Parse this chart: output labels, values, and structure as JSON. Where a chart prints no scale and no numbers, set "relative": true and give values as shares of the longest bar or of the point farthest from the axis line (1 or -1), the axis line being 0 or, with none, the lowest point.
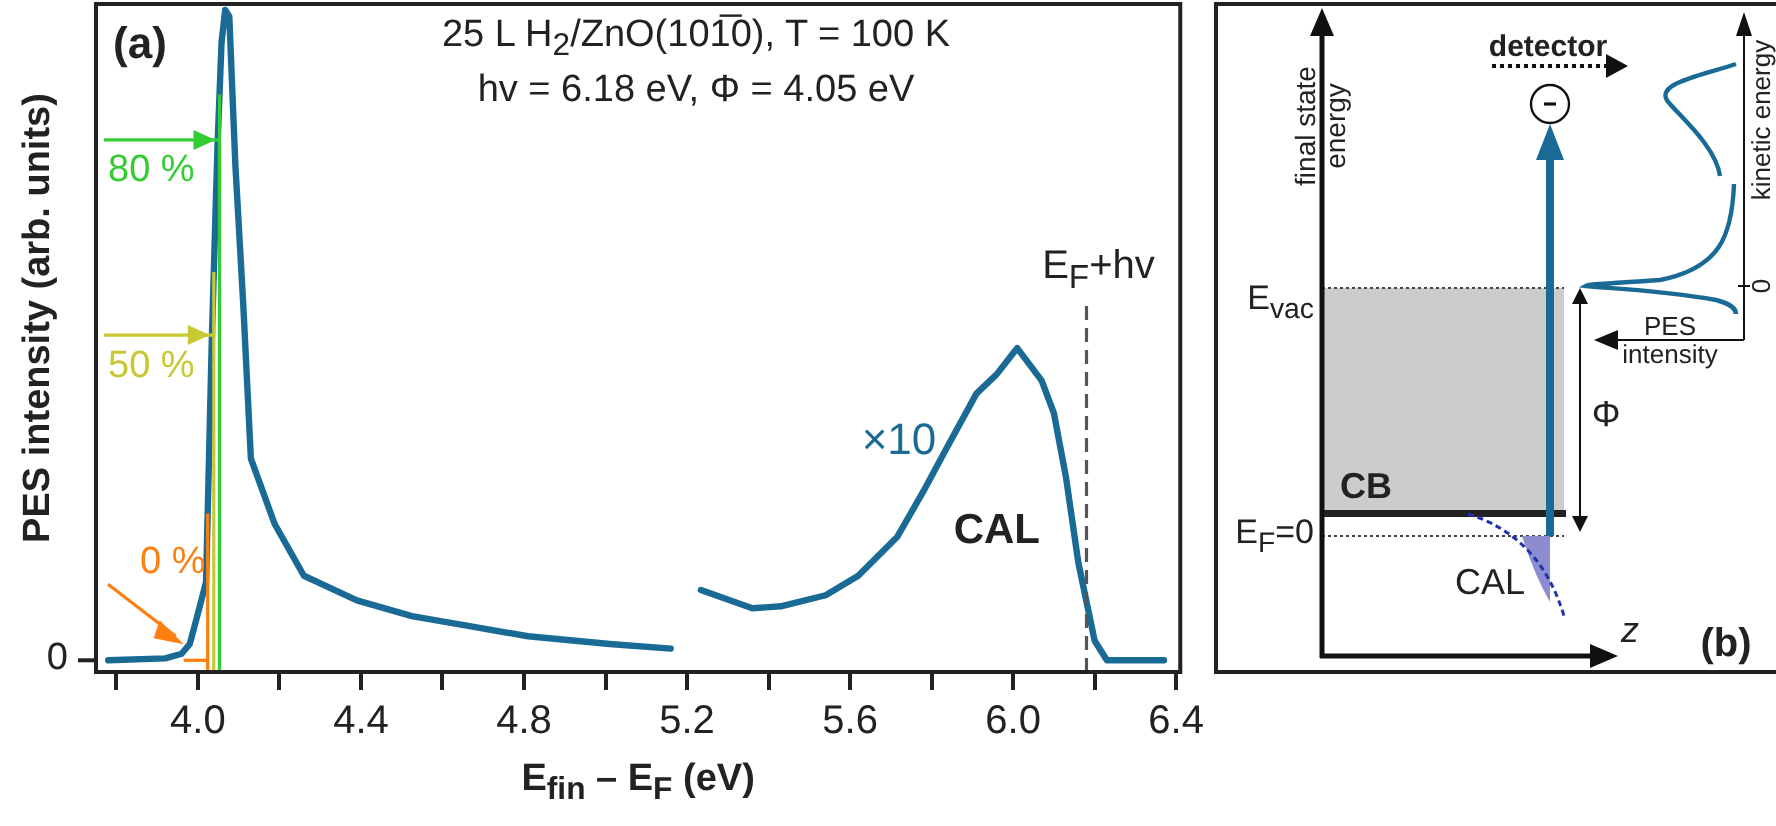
{
  "chart_data": [
    {
      "type": "line",
      "xlabel": "E$_{fin}$ – E$_{F}$ (eV)",
      "ylabel": "PES intensity (arb. units)",
      "relative": true,
      "xlim": [
        3.75,
        6.41
      ],
      "xticks": [
        {
          "value": 3.8,
          "label": null
        },
        {
          "value": 4,
          "label": "4.0"
        },
        {
          "value": 4.2,
          "label": null
        },
        4.4,
        {
          "value": 4.6,
          "label": null
        },
        4.8,
        {
          "value": 5,
          "label": null
        },
        5.2,
        {
          "value": 5.4,
          "label": null
        },
        5.6,
        {
          "value": 5.8,
          "label": null
        },
        {
          "value": 6,
          "label": "6.0"
        },
        {
          "value": 6.2,
          "label": null
        },
        6.4
      ],
      "series": [
        {
          "color": "#1a6a96",
          "x": [
            3.78,
            3.92,
            3.96,
            3.98,
            3.995,
            4.02,
            4.034,
            4.048,
            4.058,
            4.067,
            4.077,
            4.092,
            4.111,
            4.13,
            4.188,
            4.26,
            4.39,
            4.525,
            4.67,
            4.81,
            5.01,
            5.16,
            5.2,
            5.234,
            5.36,
            5.43,
            5.54,
            5.62,
            5.716,
            5.78,
            5.84,
            5.91,
            5.96,
            6.01,
            6.07,
            6.1,
            6.13,
            6.16,
            6.2,
            6.23,
            6.37
          ],
          "values": [
            0,
            0.003,
            0.01,
            0.025,
            0.06,
            0.12,
            0.49,
            0.79,
            0.95,
            1,
            0.99,
            0.76,
            0.55,
            0.31,
            0.21,
            0.13,
            0.092,
            0.068,
            0.052,
            0.037,
            0.025,
            0.018,
            null,
            0.108,
            0.08,
            0.083,
            0.1,
            0.13,
            0.19,
            0.26,
            0.33,
            0.41,
            0.44,
            0.48,
            0.43,
            0.38,
            0.28,
            0.15,
            0.03,
            0,
            0
          ]
        }
      ],
      "ref_lines": [
        {
          "axis": "x",
          "value": 4.024,
          "color": "#ff7f0e"
        },
        {
          "axis": "x",
          "value": 4.039,
          "color": "#c8c832"
        },
        {
          "axis": "x",
          "value": 4.053,
          "color": "#33cc33"
        },
        {
          "axis": "y",
          "value": 0.5,
          "label": "50 %",
          "color": "#c8c832"
        },
        {
          "axis": "y",
          "value": 0.8,
          "label": "80 %",
          "color": "#33cc33"
        },
        {
          "axis": "x",
          "value": 6.18,
          "label": "E$_{F}$+hv",
          "color": "#555555",
          "line_style": "dashed"
        }
      ],
      "annotations": [
        "(a)",
        "25 L H$_{2}$/ZnO(101̅0), T = 100 K",
        "hv = 6.18 eV, Φ = 4.05 eV",
        "0",
        "×10",
        "CAL",
        "0 %"
      ]
    },
    {
      "type": "other",
      "annotations": [
        "final state energy",
        "detector",
        "kinetic energy",
        "0",
        "E$_{vac}$",
        "PES intensity",
        "Φ",
        "CB",
        "E$_{F}$=0",
        "CAL",
        "z",
        "(b)"
      ]
    }
  ]
}
